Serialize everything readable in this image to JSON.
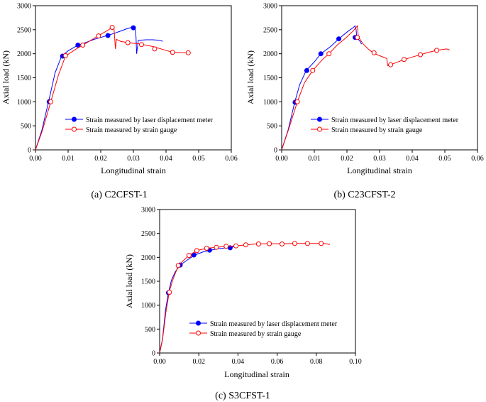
{
  "chart_data": [
    {
      "type": "line",
      "caption": "(a) C2CFST-1",
      "xlabel": "Longitudinal strain",
      "ylabel": "Axial load (kN)",
      "xlim": [
        0,
        0.06
      ],
      "ylim": [
        0,
        3000
      ],
      "xticks": [
        "0.00",
        "0.01",
        "0.02",
        "0.03",
        "0.04",
        "0.05",
        "0.06"
      ],
      "yticks": [
        "0",
        "500",
        "1000",
        "1500",
        "2000",
        "2500",
        "3000"
      ],
      "legend_position": "center-right",
      "series": [
        {
          "name": "Strain measured by laser displacement meter",
          "color": "#0000ff",
          "marker": "filled-circle",
          "x": [
            0,
            0.002,
            0.004,
            0.006,
            0.008,
            0.01,
            0.012,
            0.014,
            0.016,
            0.018,
            0.02,
            0.022,
            0.024,
            0.026,
            0.028,
            0.03,
            0.0305,
            0.0308,
            0.031,
            0.0315,
            0.034,
            0.036,
            0.038,
            0.039
          ],
          "y": [
            0,
            420,
            1000,
            1600,
            1950,
            2060,
            2140,
            2200,
            2250,
            2300,
            2340,
            2380,
            2420,
            2470,
            2520,
            2560,
            2550,
            2350,
            2000,
            2280,
            2290,
            2290,
            2280,
            2260
          ],
          "markers_x": [
            0.0042,
            0.0083,
            0.013,
            0.0222,
            0.03
          ],
          "markers_y": [
            1000,
            1950,
            2180,
            2380,
            2540
          ]
        },
        {
          "name": "Strain measured by strain gauge",
          "color": "#ff0000",
          "marker": "open-circle",
          "x": [
            0,
            0.002,
            0.0047,
            0.007,
            0.0092,
            0.012,
            0.0145,
            0.017,
            0.0193,
            0.022,
            0.0235,
            0.024,
            0.0242,
            0.0245,
            0.0248,
            0.026,
            0.0283,
            0.0315,
            0.036,
            0.0395,
            0.042,
            0.045,
            0.047
          ],
          "y": [
            0,
            380,
            1000,
            1550,
            1950,
            2080,
            2180,
            2280,
            2380,
            2480,
            2550,
            2570,
            2400,
            2100,
            2300,
            2260,
            2230,
            2210,
            2150,
            2080,
            2030,
            2020,
            2020
          ],
          "markers_x": [
            0.0047,
            0.0092,
            0.0145,
            0.0193,
            0.0235,
            0.0283,
            0.0325,
            0.0365,
            0.042,
            0.0468
          ],
          "markers_y": [
            1000,
            1960,
            2180,
            2370,
            2550,
            2230,
            2190,
            2100,
            2030,
            2020
          ]
        }
      ]
    },
    {
      "type": "line",
      "caption": "(b) C23CFST-2",
      "xlabel": "Longitudinal strain",
      "ylabel": "Axial load (kN)",
      "xlim": [
        0,
        0.06
      ],
      "ylim": [
        0,
        3000
      ],
      "xticks": [
        "0.00",
        "0.01",
        "0.02",
        "0.03",
        "0.04",
        "0.05",
        "0.06"
      ],
      "yticks": [
        "0",
        "500",
        "1000",
        "1500",
        "2000",
        "2500",
        "3000"
      ],
      "legend_position": "center-right",
      "series": [
        {
          "name": "Strain measured by laser displacement meter",
          "color": "#0000ff",
          "marker": "filled-circle",
          "x": [
            0,
            0.002,
            0.004,
            0.0055,
            0.0075,
            0.01,
            0.012,
            0.015,
            0.0175,
            0.02,
            0.022,
            0.0225,
            0.0228,
            0.023,
            0.0235,
            0.024,
            0.0245
          ],
          "y": [
            0,
            420,
            990,
            1350,
            1650,
            1830,
            2000,
            2150,
            2310,
            2450,
            2550,
            2580,
            2500,
            2340,
            2300,
            2260,
            2200
          ],
          "markers_x": [
            0.0041,
            0.0077,
            0.012,
            0.0175,
            0.0225
          ],
          "markers_y": [
            990,
            1650,
            2000,
            2310,
            2340
          ]
        },
        {
          "name": "Strain measured by strain gauge",
          "color": "#ff0000",
          "marker": "open-circle",
          "x": [
            0,
            0.002,
            0.0048,
            0.007,
            0.0095,
            0.0125,
            0.0145,
            0.017,
            0.0195,
            0.022,
            0.0232,
            0.0235,
            0.024,
            0.025,
            0.0265,
            0.028,
            0.03,
            0.0322,
            0.0325,
            0.0335,
            0.0345,
            0.0375,
            0.0405,
            0.0425,
            0.045,
            0.0475,
            0.0505,
            0.0515
          ],
          "y": [
            0,
            400,
            1000,
            1400,
            1650,
            1880,
            2000,
            2180,
            2320,
            2480,
            2580,
            2350,
            2300,
            2200,
            2100,
            2020,
            1960,
            1900,
            1750,
            1780,
            1800,
            1880,
            1940,
            1980,
            2030,
            2070,
            2100,
            2080
          ],
          "markers_x": [
            0.0048,
            0.0095,
            0.0145,
            0.0232,
            0.0283,
            0.0334,
            0.0375,
            0.0425,
            0.0475
          ],
          "markers_y": [
            1000,
            1650,
            2000,
            2340,
            2020,
            1770,
            1880,
            1980,
            2070
          ]
        }
      ]
    },
    {
      "type": "line",
      "caption": "(c) S3CFST-1",
      "xlabel": "Longitudinal strain",
      "ylabel": "Axial load (kN)",
      "xlim": [
        0,
        0.1
      ],
      "ylim": [
        0,
        3000
      ],
      "xticks": [
        "0.00",
        "0.02",
        "0.04",
        "0.06",
        "0.08",
        "0.10"
      ],
      "yticks": [
        "0",
        "500",
        "1000",
        "1500",
        "2000",
        "2500",
        "3000"
      ],
      "legend_position": "center-right",
      "series": [
        {
          "name": "Strain measured by laser displacement meter",
          "color": "#0000ff",
          "marker": "filled-circle",
          "x": [
            0,
            0.0015,
            0.003,
            0.0045,
            0.006,
            0.008,
            0.0105,
            0.014,
            0.018,
            0.022,
            0.026,
            0.03,
            0.034,
            0.0365,
            0.038
          ],
          "y": [
            0,
            300,
            900,
            1260,
            1520,
            1700,
            1840,
            1940,
            2050,
            2110,
            2150,
            2180,
            2200,
            2210,
            2220
          ],
          "markers_x": [
            0.0045,
            0.0105,
            0.0175,
            0.0255,
            0.036
          ],
          "markers_y": [
            1260,
            1840,
            2050,
            2150,
            2200
          ]
        },
        {
          "name": "Strain measured by strain gauge",
          "color": "#ff0000",
          "marker": "open-circle",
          "x": [
            0,
            0.0015,
            0.0032,
            0.005,
            0.007,
            0.0095,
            0.0125,
            0.015,
            0.019,
            0.024,
            0.029,
            0.034,
            0.039,
            0.044,
            0.049,
            0.054,
            0.059,
            0.064,
            0.069,
            0.074,
            0.079,
            0.084,
            0.087
          ],
          "y": [
            0,
            280,
            850,
            1300,
            1560,
            1820,
            1950,
            2040,
            2140,
            2190,
            2210,
            2230,
            2240,
            2260,
            2280,
            2285,
            2285,
            2285,
            2290,
            2290,
            2290,
            2290,
            2270
          ],
          "markers_x": [
            0.005,
            0.0095,
            0.015,
            0.019,
            0.024,
            0.029,
            0.034,
            0.039,
            0.044,
            0.0505,
            0.056,
            0.0625,
            0.069,
            0.0755,
            0.0825
          ],
          "markers_y": [
            1270,
            1830,
            2040,
            2140,
            2190,
            2210,
            2230,
            2240,
            2260,
            2280,
            2285,
            2280,
            2290,
            2290,
            2290
          ]
        }
      ]
    }
  ]
}
